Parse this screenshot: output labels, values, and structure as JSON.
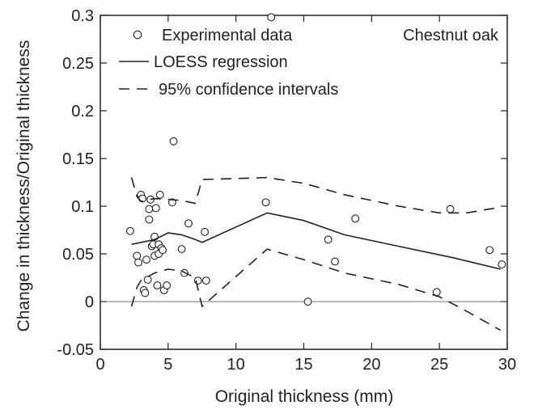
{
  "chart_data": {
    "type": "scatter",
    "title": "",
    "annotation": "Chestnut oak",
    "xlabel": "Original thickness (mm)",
    "ylabel": "Change in thickness/Original thickness",
    "xlim": [
      0,
      30
    ],
    "ylim": [
      -0.05,
      0.3
    ],
    "xticks": [
      0,
      5,
      10,
      15,
      20,
      25,
      30
    ],
    "yticks": [
      -0.05,
      0,
      0.05,
      0.1,
      0.15,
      0.2,
      0.25,
      0.3
    ],
    "xtick_labels": [
      "0",
      "5",
      "10",
      "15",
      "20",
      "25",
      "30"
    ],
    "ytick_labels": [
      "-0.05",
      "0",
      "0.05",
      "0.1",
      "0.15",
      "0.2",
      "0.25",
      "0.3"
    ],
    "grid": false,
    "legend": {
      "placement": "top-left",
      "entries": [
        {
          "label": "Experimental data",
          "style": "circle"
        },
        {
          "label": "LOESS regression",
          "style": "solid"
        },
        {
          "label": "95% confidence intervals",
          "style": "dashed"
        }
      ]
    },
    "reference_line_y": 0,
    "series": [
      {
        "name": "Experimental data",
        "kind": "points",
        "x": [
          2.2,
          2.7,
          2.8,
          3.0,
          3.1,
          3.2,
          3.3,
          3.4,
          3.5,
          3.6,
          3.6,
          3.7,
          3.8,
          3.9,
          4.0,
          4.0,
          4.1,
          4.2,
          4.3,
          4.3,
          4.4,
          4.5,
          4.6,
          4.7,
          4.9,
          5.3,
          5.4,
          6.0,
          6.2,
          6.5,
          7.2,
          7.7,
          7.8,
          12.2,
          12.6,
          15.3,
          16.8,
          17.3,
          18.8,
          24.8,
          25.8,
          28.7,
          29.6
        ],
        "y": [
          0.074,
          0.048,
          0.041,
          0.112,
          0.108,
          0.012,
          0.009,
          0.044,
          0.023,
          0.097,
          0.086,
          0.107,
          0.058,
          0.06,
          0.068,
          0.048,
          0.098,
          0.017,
          0.05,
          0.06,
          0.112,
          0.056,
          0.054,
          0.012,
          0.017,
          0.104,
          0.168,
          0.055,
          0.03,
          0.082,
          0.022,
          0.073,
          0.022,
          0.104,
          0.298,
          0.0,
          0.065,
          0.042,
          0.087,
          0.01,
          0.097,
          0.054,
          0.039
        ],
        "color": "#222222"
      },
      {
        "name": "LOESS regression",
        "kind": "line",
        "x": [
          2.3,
          3.0,
          4.0,
          5.0,
          6.0,
          7.0,
          7.5,
          12.3,
          15.0,
          18.0,
          22.0,
          26.0,
          29.5
        ],
        "y": [
          0.06,
          0.062,
          0.065,
          0.072,
          0.07,
          0.065,
          0.062,
          0.093,
          0.085,
          0.07,
          0.058,
          0.046,
          0.034
        ],
        "color": "#222222"
      },
      {
        "name": "95% confidence upper",
        "kind": "dashed",
        "x": [
          2.3,
          2.7,
          3.0,
          4.0,
          5.0,
          6.0,
          7.0,
          7.5,
          12.3,
          15.0,
          18.0,
          22.0,
          25.0,
          27.0,
          29.5
        ],
        "y": [
          0.13,
          0.11,
          0.105,
          0.108,
          0.107,
          0.106,
          0.103,
          0.128,
          0.13,
          0.124,
          0.112,
          0.1,
          0.093,
          0.093,
          0.099
        ],
        "color": "#222222"
      },
      {
        "name": "95% confidence lower",
        "kind": "dashed",
        "x": [
          2.3,
          2.7,
          3.0,
          4.0,
          5.0,
          6.0,
          7.0,
          7.5,
          12.3,
          15.0,
          18.0,
          22.0,
          25.0,
          27.0,
          29.5
        ],
        "y": [
          -0.005,
          0.015,
          0.022,
          0.03,
          0.034,
          0.032,
          0.025,
          -0.005,
          0.055,
          0.044,
          0.03,
          0.018,
          0.005,
          -0.01,
          -0.03
        ],
        "color": "#222222"
      }
    ]
  }
}
